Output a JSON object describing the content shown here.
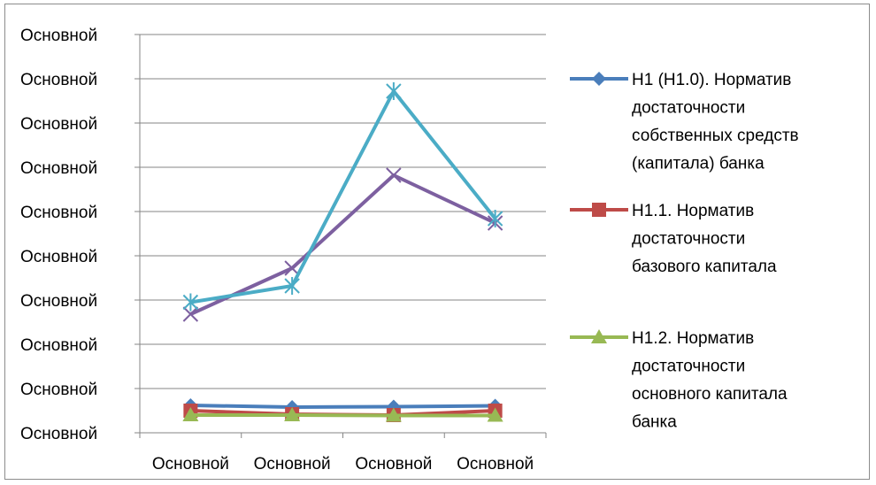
{
  "chart_data": {
    "type": "line",
    "categories": [
      "Основной",
      "Основной",
      "Основной",
      "Основной"
    ],
    "y_tick_labels": [
      "Основной",
      "Основной",
      "Основной",
      "Основной",
      "Основной",
      "Основной",
      "Основной",
      "Основной",
      "Основной",
      "Основной"
    ],
    "ylim": [
      0,
      9
    ],
    "grid": true,
    "legend_position": "right",
    "series": [
      {
        "name": "Н1 (Н1.0). Норматив достаточности собственных средств (капитала) банка",
        "legend_lines": [
          "Н1 (Н1.0). Норматив",
          "достаточности",
          "собственных средств",
          "(капитала) банка"
        ],
        "values": [
          0.62,
          0.58,
          0.59,
          0.61
        ],
        "color": "#4a7ebb",
        "marker": "diamond"
      },
      {
        "name": "Н1.1. Норматив достаточности базового капитала",
        "legend_lines": [
          "Н1.1. Норматив",
          "достаточности",
          "базового капитала"
        ],
        "values": [
          0.5,
          0.42,
          0.4,
          0.5
        ],
        "color": "#be4b48",
        "marker": "square"
      },
      {
        "name": "Н1.2. Норматив достаточности основного капитала банка",
        "legend_lines": [
          "Н1.2. Норматив",
          "достаточности",
          "основного капитала",
          "банка"
        ],
        "values": [
          0.4,
          0.4,
          0.39,
          0.39
        ],
        "color": "#98b954",
        "marker": "triangle"
      },
      {
        "name": "",
        "legend_lines": [],
        "values": [
          2.68,
          3.72,
          5.82,
          4.74
        ],
        "color": "#7d60a0",
        "marker": "x"
      },
      {
        "name": "",
        "legend_lines": [],
        "values": [
          2.95,
          3.32,
          7.72,
          4.84
        ],
        "color": "#4bacc6",
        "marker": "star"
      }
    ]
  }
}
